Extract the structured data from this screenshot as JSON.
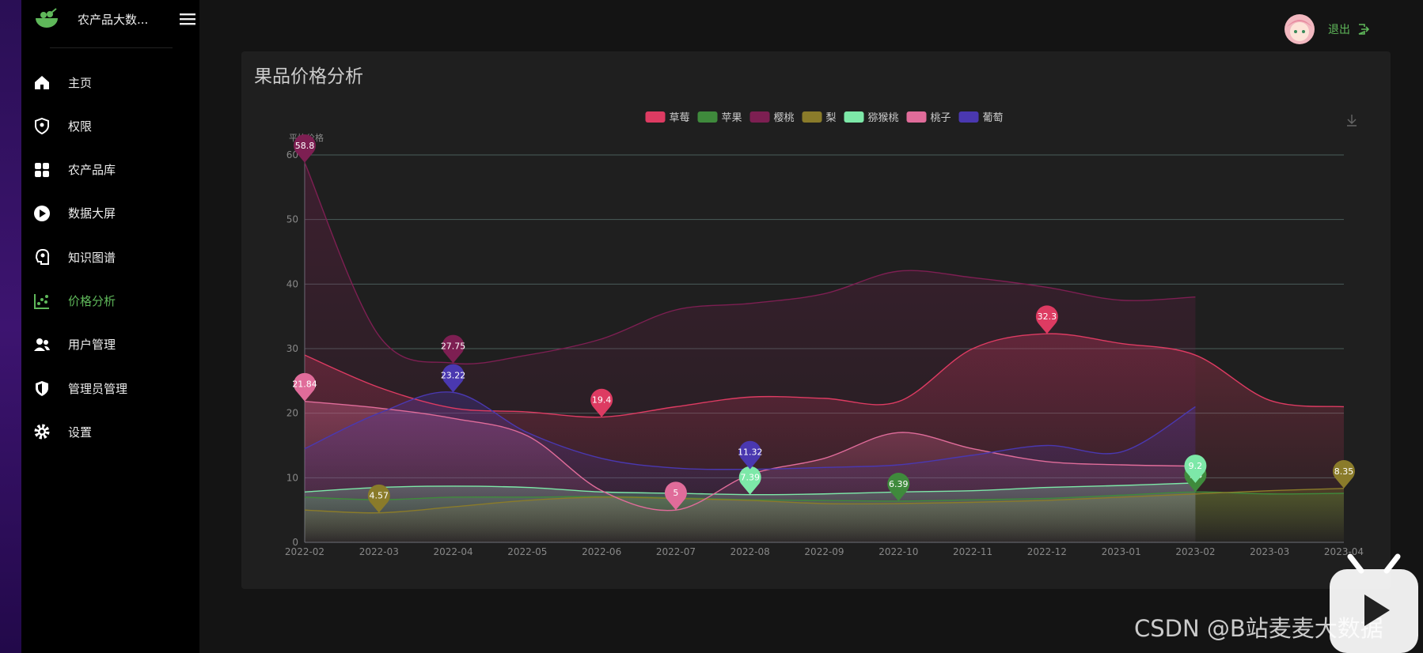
{
  "sidebar": {
    "brand": "农产品大数...",
    "menu": [
      "主页",
      "权限",
      "农产品库",
      "数据大屏",
      "知识图谱",
      "价格分析",
      "用户管理",
      "管理员管理",
      "设置"
    ],
    "active": 5
  },
  "header": {
    "logout": "退出"
  },
  "card": {
    "title": "果品价格分析"
  },
  "chart_data": {
    "type": "line",
    "smooth": true,
    "area": true,
    "grid": true,
    "legend": "top",
    "mark_points": [
      "max",
      "min"
    ],
    "y_axis_label": "平均价格",
    "categories": [
      "2022-02",
      "2022-03",
      "2022-04",
      "2022-05",
      "2022-06",
      "2022-07",
      "2022-08",
      "2022-09",
      "2022-10",
      "2022-11",
      "2022-12",
      "2023-01",
      "2023-02",
      "2023-03",
      "2023-04"
    ],
    "ylim": [
      0,
      60
    ],
    "yticks": [
      0,
      10,
      20,
      30,
      40,
      50,
      60
    ],
    "series": [
      {
        "name": "草莓",
        "color": "#dd3b62",
        "values": [
          29,
          24,
          20.8,
          20.2,
          19.4,
          21,
          22.5,
          22.3,
          21.8,
          30,
          32.3,
          30.8,
          29,
          22,
          21
        ]
      },
      {
        "name": "苹果",
        "color": "#3f8a3c",
        "values": [
          7,
          6.6,
          7,
          7,
          7.1,
          6.9,
          6.6,
          6.5,
          6.39,
          6.6,
          6.8,
          7.3,
          7.8,
          7.5,
          7.6
        ]
      },
      {
        "name": "樱桃",
        "color": "#7d1f52",
        "values": [
          58.8,
          32,
          27.75,
          29,
          31.5,
          36,
          37,
          38.5,
          42,
          41,
          39.5,
          37.5,
          38,
          null,
          null
        ]
      },
      {
        "name": "梨",
        "color": "#8a7b2a",
        "values": [
          5,
          4.57,
          5.5,
          6.5,
          7,
          6.8,
          6.5,
          6,
          6,
          6.2,
          6.5,
          7,
          7.5,
          8,
          8.35
        ]
      },
      {
        "name": "猕猴桃",
        "color": "#7de8a8",
        "values": [
          7.8,
          8.5,
          8.7,
          8.5,
          7.8,
          7.6,
          7.39,
          7.5,
          7.8,
          8,
          8.5,
          8.8,
          9.2,
          null,
          null
        ]
      },
      {
        "name": "桃子",
        "color": "#e06c9a",
        "values": [
          21.84,
          20.8,
          19.2,
          16.5,
          8,
          5,
          10.5,
          13,
          17,
          14.5,
          12.5,
          12,
          11.8,
          null,
          null
        ]
      },
      {
        "name": "葡萄",
        "color": "#4a38b0",
        "values": [
          14.5,
          20,
          23.22,
          17,
          13,
          11.5,
          11.32,
          11.6,
          12,
          13.5,
          15,
          14,
          21,
          null,
          null
        ]
      }
    ]
  },
  "watermark": "CSDN @B站麦麦大数据"
}
